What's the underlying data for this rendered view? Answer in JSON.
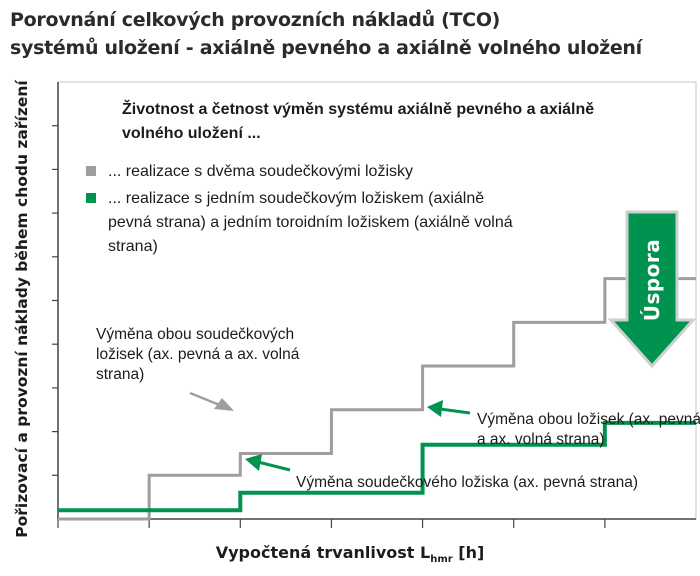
{
  "chart_data": {
    "type": "line",
    "title": "Porovnání celkových provozních nákladů (TCO)",
    "subtitle": "systémů uložení - axiálně pevného a axiálně volného uložení",
    "xlabel_main": "Vypočtená trvanlivost L",
    "xlabel_sub": "hmr",
    "xlabel_unit": "[h]",
    "ylabel": "Pořizovací a provozní náklady během chodu zařízení",
    "x_ticks": [
      0,
      1,
      2,
      3,
      4,
      5,
      6
    ],
    "x_range": [
      0,
      7
    ],
    "y_range": [
      0,
      10
    ],
    "grid": false,
    "legend_title": "Životnost a četnost výměn systému axiálně pevného a axiálně volného uložení ...",
    "series": [
      {
        "name": "... realizace s dvěma soudečkovými ložisky",
        "color": "#9e9e9e",
        "step_x": [
          0,
          1,
          2,
          3,
          4,
          5,
          6,
          7
        ],
        "step_y": [
          0,
          1,
          1.5,
          2.5,
          3.5,
          4.5,
          5.5,
          5.5
        ]
      },
      {
        "name": "... realizace s jedním soudečkovým ložiskem (axiálně pevná strana) a jedním toroidním ložiskem (axiálně volná strana)",
        "color": "#00934f",
        "step_x": [
          0,
          2,
          4,
          6,
          7
        ],
        "step_y": [
          0.2,
          0.6,
          1.7,
          2.2,
          2.2
        ]
      }
    ],
    "annotations": {
      "gray_replace": "Výměna obou soudečkových ložisek (ax. pevná a ax. volná strana)",
      "green_both": "Výměna obou ložisek (ax. pevná a ax. volná strana)",
      "green_one": "Výměna soudečkového ložiska (ax. pevná strana)",
      "savings": "Úspora"
    }
  }
}
